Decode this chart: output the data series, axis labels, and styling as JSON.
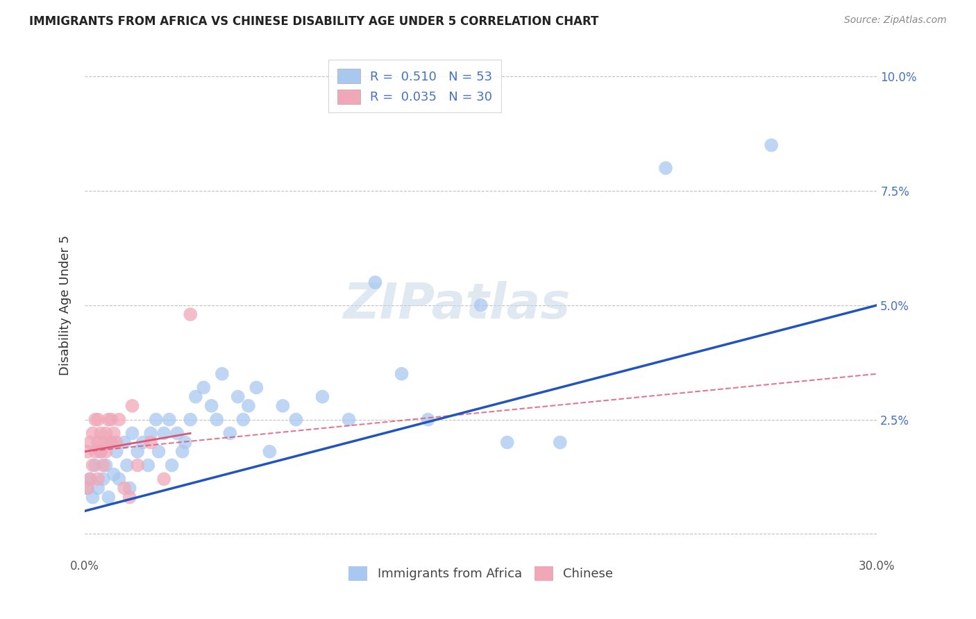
{
  "title": "IMMIGRANTS FROM AFRICA VS CHINESE DISABILITY AGE UNDER 5 CORRELATION CHART",
  "source": "Source: ZipAtlas.com",
  "ylabel": "Disability Age Under 5",
  "xlim": [
    0.0,
    0.3
  ],
  "ylim": [
    -0.005,
    0.105
  ],
  "x_ticks": [
    0.0,
    0.05,
    0.1,
    0.15,
    0.2,
    0.25,
    0.3
  ],
  "x_tick_labels": [
    "0.0%",
    "",
    "",
    "",
    "",
    "",
    "30.0%"
  ],
  "y_ticks": [
    0.0,
    0.025,
    0.05,
    0.075,
    0.1
  ],
  "y_tick_labels": [
    "",
    "2.5%",
    "5.0%",
    "7.5%",
    "10.0%"
  ],
  "legend_R_blue": "0.510",
  "legend_N_blue": "53",
  "legend_R_pink": "0.035",
  "legend_N_pink": "30",
  "blue_color": "#A8C8F0",
  "pink_color": "#F0A8B8",
  "blue_line_color": "#2255BB",
  "pink_line_color": "#DD5577",
  "watermark": "ZIPatlas",
  "blue_scatter_x": [
    0.001,
    0.002,
    0.003,
    0.004,
    0.005,
    0.006,
    0.007,
    0.008,
    0.009,
    0.01,
    0.011,
    0.012,
    0.013,
    0.015,
    0.016,
    0.017,
    0.018,
    0.02,
    0.022,
    0.024,
    0.025,
    0.027,
    0.028,
    0.03,
    0.032,
    0.033,
    0.035,
    0.037,
    0.038,
    0.04,
    0.042,
    0.045,
    0.048,
    0.05,
    0.052,
    0.055,
    0.058,
    0.06,
    0.062,
    0.065,
    0.07,
    0.075,
    0.08,
    0.09,
    0.1,
    0.11,
    0.12,
    0.13,
    0.15,
    0.16,
    0.18,
    0.22,
    0.26
  ],
  "blue_scatter_y": [
    0.01,
    0.012,
    0.008,
    0.015,
    0.01,
    0.018,
    0.012,
    0.015,
    0.008,
    0.02,
    0.013,
    0.018,
    0.012,
    0.02,
    0.015,
    0.01,
    0.022,
    0.018,
    0.02,
    0.015,
    0.022,
    0.025,
    0.018,
    0.022,
    0.025,
    0.015,
    0.022,
    0.018,
    0.02,
    0.025,
    0.03,
    0.032,
    0.028,
    0.025,
    0.035,
    0.022,
    0.03,
    0.025,
    0.028,
    0.032,
    0.018,
    0.028,
    0.025,
    0.03,
    0.025,
    0.055,
    0.035,
    0.025,
    0.05,
    0.02,
    0.02,
    0.08,
    0.085
  ],
  "pink_scatter_x": [
    0.001,
    0.001,
    0.002,
    0.002,
    0.003,
    0.003,
    0.004,
    0.004,
    0.005,
    0.005,
    0.005,
    0.006,
    0.006,
    0.007,
    0.007,
    0.008,
    0.008,
    0.009,
    0.01,
    0.01,
    0.011,
    0.012,
    0.013,
    0.015,
    0.017,
    0.018,
    0.02,
    0.025,
    0.03,
    0.04
  ],
  "pink_scatter_y": [
    0.01,
    0.018,
    0.012,
    0.02,
    0.015,
    0.022,
    0.018,
    0.025,
    0.012,
    0.02,
    0.025,
    0.018,
    0.022,
    0.015,
    0.02,
    0.018,
    0.022,
    0.025,
    0.02,
    0.025,
    0.022,
    0.02,
    0.025,
    0.01,
    0.008,
    0.028,
    0.015,
    0.02,
    0.012,
    0.048
  ],
  "blue_line_x0": 0.0,
  "blue_line_y0": 0.005,
  "blue_line_x1": 0.3,
  "blue_line_y1": 0.05,
  "pink_line_solid_x0": 0.0,
  "pink_line_solid_y0": 0.018,
  "pink_line_solid_x1": 0.04,
  "pink_line_solid_y1": 0.022,
  "pink_line_dash_x0": 0.0,
  "pink_line_dash_y0": 0.018,
  "pink_line_dash_x1": 0.3,
  "pink_line_dash_y1": 0.035
}
